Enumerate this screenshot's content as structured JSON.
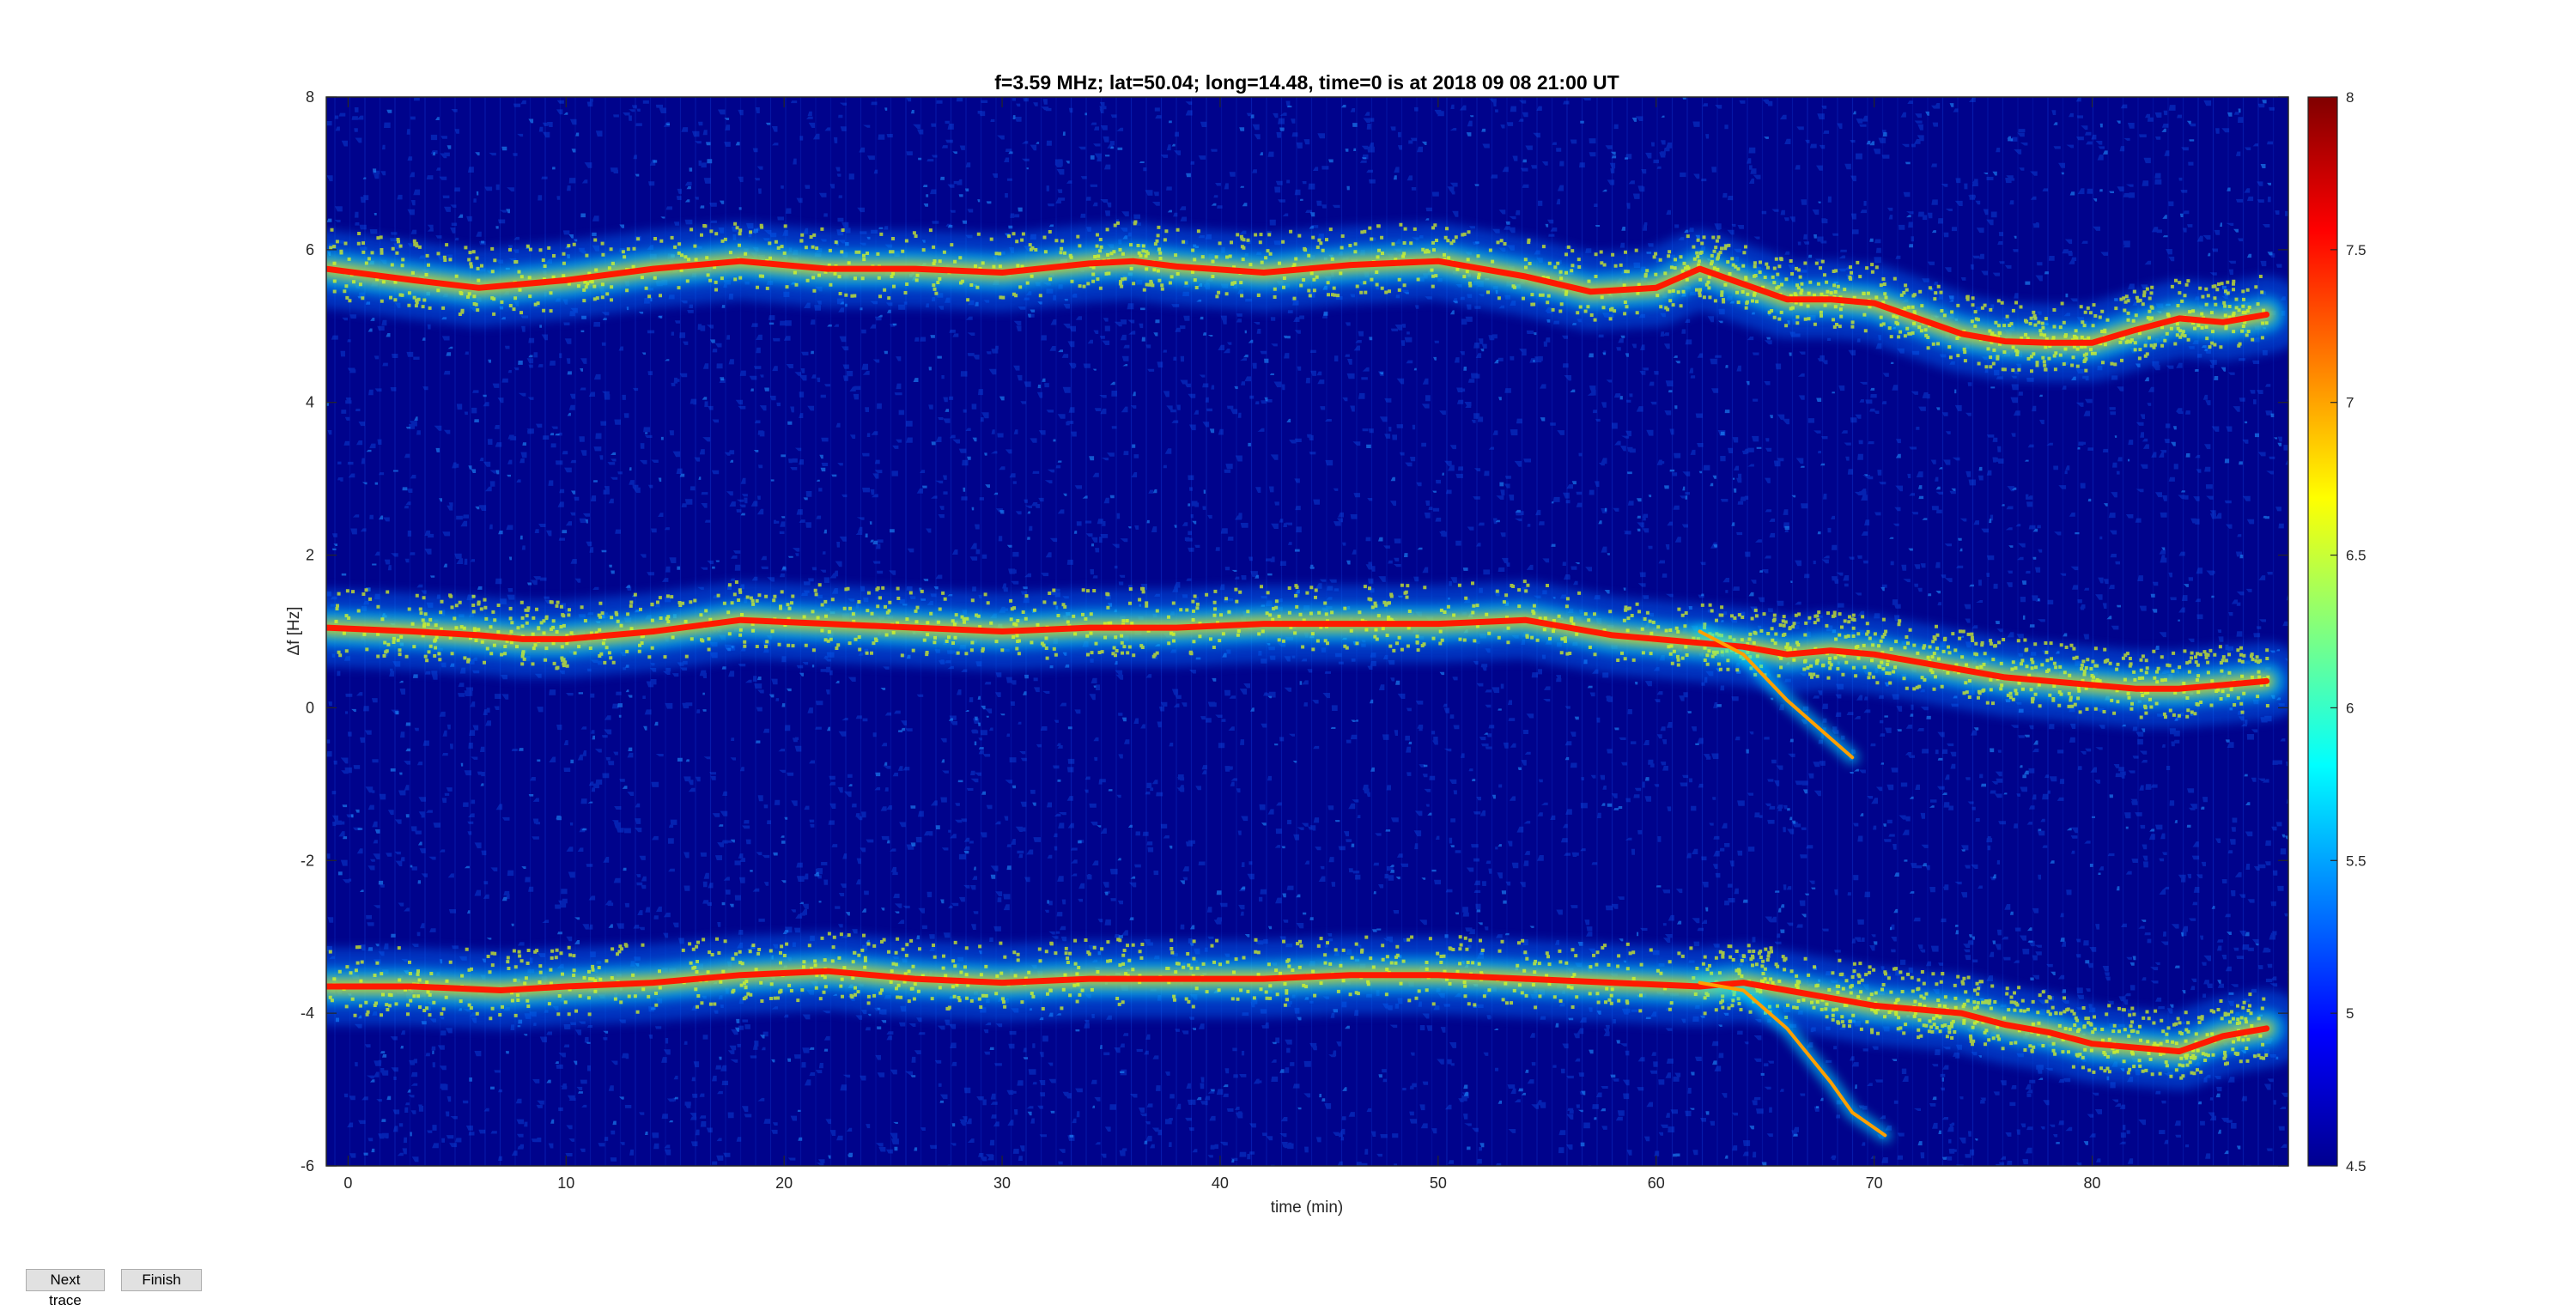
{
  "chart_data": {
    "type": "heatmap",
    "title": "f=3.59 MHz;  lat=50.04; long=14.48, time=0 is at 2018 09 08 21:00 UT",
    "xlabel": "time (min)",
    "ylabel": "Δf [Hz]",
    "xlim": [
      -1,
      89
    ],
    "ylim": [
      -6,
      8
    ],
    "xticks": [
      0,
      10,
      20,
      30,
      40,
      50,
      60,
      70,
      80
    ],
    "yticks": [
      -6,
      -4,
      -2,
      0,
      2,
      4,
      6,
      8
    ],
    "colorbar": {
      "colormap": "jet",
      "clim": [
        4.5,
        8
      ],
      "ticks": [
        "4.5",
        "5",
        "5.5",
        "6",
        "6.5",
        "7",
        "7.5",
        "8"
      ]
    },
    "series": [
      {
        "x": [
          -1,
          3,
          6,
          10,
          14,
          18,
          22,
          26,
          30,
          34,
          36,
          38,
          42,
          46,
          50,
          54,
          57,
          60,
          62,
          64,
          66,
          68,
          70,
          72,
          74,
          76,
          78,
          80,
          82,
          84,
          86,
          88
        ],
        "values": [
          5.75,
          5.6,
          5.5,
          5.6,
          5.75,
          5.85,
          5.75,
          5.75,
          5.7,
          5.82,
          5.85,
          5.78,
          5.7,
          5.8,
          5.85,
          5.65,
          5.45,
          5.5,
          5.75,
          5.55,
          5.35,
          5.35,
          5.3,
          5.1,
          4.9,
          4.8,
          4.78,
          4.78,
          4.95,
          5.1,
          5.05,
          5.15
        ]
      },
      {
        "x": [
          -1,
          3,
          6,
          8,
          10,
          14,
          18,
          22,
          26,
          30,
          34,
          38,
          42,
          46,
          50,
          54,
          58,
          62,
          64,
          66,
          68,
          70,
          72,
          74,
          76,
          78,
          80,
          82,
          84,
          86,
          88
        ],
        "values": [
          1.05,
          1.0,
          0.95,
          0.9,
          0.9,
          1.0,
          1.15,
          1.1,
          1.05,
          1.0,
          1.05,
          1.05,
          1.1,
          1.1,
          1.1,
          1.15,
          0.95,
          0.85,
          0.8,
          0.7,
          0.75,
          0.7,
          0.6,
          0.5,
          0.4,
          0.35,
          0.3,
          0.25,
          0.25,
          0.3,
          0.35
        ]
      },
      {
        "x": [
          -1,
          3,
          7,
          10,
          14,
          18,
          22,
          26,
          30,
          34,
          38,
          42,
          46,
          50,
          54,
          58,
          62,
          64,
          66,
          68,
          70,
          72,
          74,
          76,
          78,
          80,
          82,
          84,
          86,
          88
        ],
        "values": [
          -3.65,
          -3.65,
          -3.7,
          -3.65,
          -3.6,
          -3.5,
          -3.45,
          -3.55,
          -3.6,
          -3.55,
          -3.55,
          -3.55,
          -3.5,
          -3.5,
          -3.55,
          -3.6,
          -3.65,
          -3.6,
          -3.7,
          -3.8,
          -3.9,
          -3.95,
          -4.0,
          -4.15,
          -4.25,
          -4.4,
          -4.45,
          -4.5,
          -4.3,
          -4.2
        ]
      },
      {
        "x": [
          62,
          64,
          66,
          68,
          69
        ],
        "values": [
          1.0,
          0.7,
          0.1,
          -0.4,
          -0.65
        ]
      },
      {
        "x": [
          62,
          64,
          66,
          68,
          69,
          70,
          70.5
        ],
        "values": [
          -3.6,
          -3.7,
          -4.2,
          -4.9,
          -5.3,
          -5.5,
          -5.6
        ]
      }
    ],
    "grid": false,
    "legend": "none"
  },
  "buttons": {
    "next": "Next trace",
    "finish": "Finish"
  },
  "colors": {
    "background": "#000088",
    "trace": "#ff0000"
  }
}
